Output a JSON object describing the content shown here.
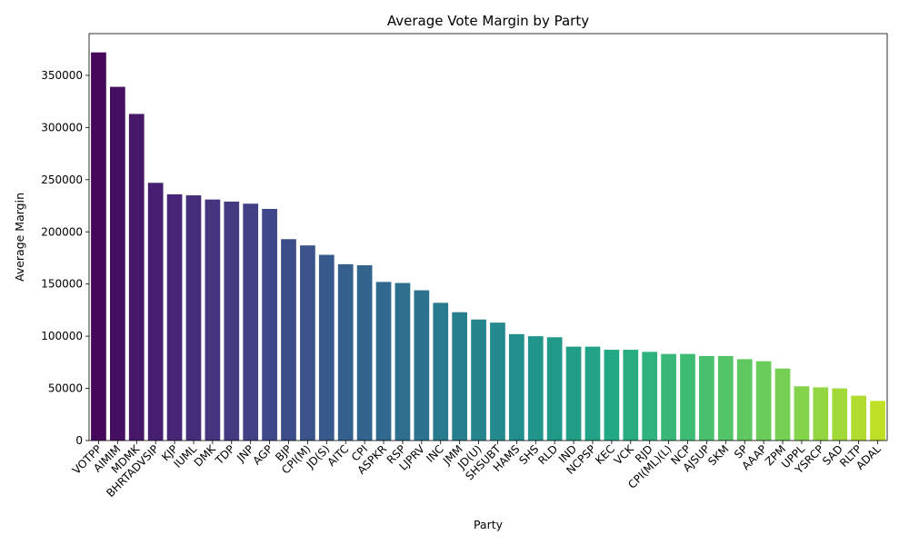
{
  "chart_data": {
    "type": "bar",
    "title": "Average Vote Margin by Party",
    "xlabel": "Party",
    "ylabel": "Average Margin",
    "ylim": [
      0,
      390000
    ],
    "yticks": [
      0,
      50000,
      100000,
      150000,
      200000,
      250000,
      300000,
      350000
    ],
    "grid": false,
    "palette": "viridis",
    "categories": [
      "VOTPP",
      "AIMIM",
      "MDMK",
      "BHRTADVSIP",
      "KJP",
      "IUML",
      "DMK",
      "TDP",
      "JNP",
      "AGP",
      "BJP",
      "CPI(M)",
      "JD(S)",
      "AITC",
      "CPI",
      "ASPKR",
      "RSP",
      "LJPRV",
      "INC",
      "JMM",
      "JD(U)",
      "SHSUBT",
      "HAMS",
      "SHS",
      "RLD",
      "IND",
      "NCPSP",
      "KEC",
      "VCK",
      "RJD",
      "CPI(ML)(L)",
      "NCP",
      "AJSUP",
      "SKM",
      "SP",
      "AAAP",
      "ZPM",
      "UPPL",
      "YSRCP",
      "SAD",
      "RLTP",
      "ADAL"
    ],
    "values": [
      372000,
      339000,
      313000,
      247000,
      236000,
      235000,
      231000,
      229000,
      227000,
      222000,
      193000,
      187000,
      178000,
      169000,
      168000,
      152000,
      151000,
      144000,
      132000,
      123000,
      116000,
      113000,
      102000,
      100000,
      99000,
      90000,
      90000,
      87000,
      87000,
      85000,
      83000,
      83000,
      81000,
      81000,
      78000,
      76000,
      69000,
      52000,
      51000,
      50000,
      43000,
      38000
    ]
  }
}
